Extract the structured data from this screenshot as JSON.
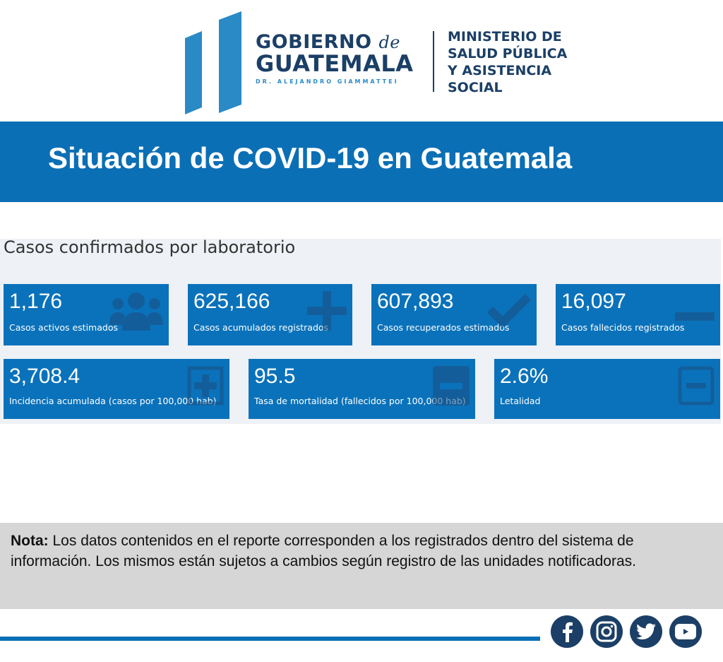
{
  "header": {
    "gov_line1": "GOBIERNO",
    "gov_de": "de",
    "gov_line2": "GUATEMALA",
    "gov_president": "DR. ALEJANDRO GIAMMATTEI",
    "ministry": [
      "MINISTERIO DE",
      "SALUD PÚBLICA",
      "Y ASISTENCIA",
      "SOCIAL"
    ]
  },
  "banner": {
    "title": "Situación de COVID-19 en Guatemala"
  },
  "section": {
    "title": "Casos confirmados por laboratorio"
  },
  "cards": [
    {
      "value": "1,176",
      "label": "Casos activos estimados",
      "icon": "users-icon"
    },
    {
      "value": "625,166",
      "label": "Casos acumulados registrados",
      "icon": "plus-icon"
    },
    {
      "value": "607,893",
      "label": "Casos recuperados estimados",
      "icon": "check-icon"
    },
    {
      "value": "16,097",
      "label": "Casos fallecidos registrados",
      "icon": "minus-icon"
    },
    {
      "value": "3,708.4",
      "label": "Incidencia acumulada (casos por 100,000 hab)",
      "icon": "plus-square-icon"
    },
    {
      "value": "95.5",
      "label": "Tasa de mortalidad (fallecidos por 100,000 hab)",
      "icon": "minus-square-icon"
    },
    {
      "value": "2.6%",
      "label": "Letalidad",
      "icon": "minus-square-outline-icon"
    }
  ],
  "note": {
    "bold": "Nota:",
    "text": " Los datos contenidos en el reporte corresponden a los registrados dentro del sistema de información. Los mismos están sujetos a cambios según registro de las unidades notificadoras."
  },
  "colors": {
    "brand": "#0b6fb5",
    "navy": "#1b3f66",
    "card": "#0a72bb"
  }
}
